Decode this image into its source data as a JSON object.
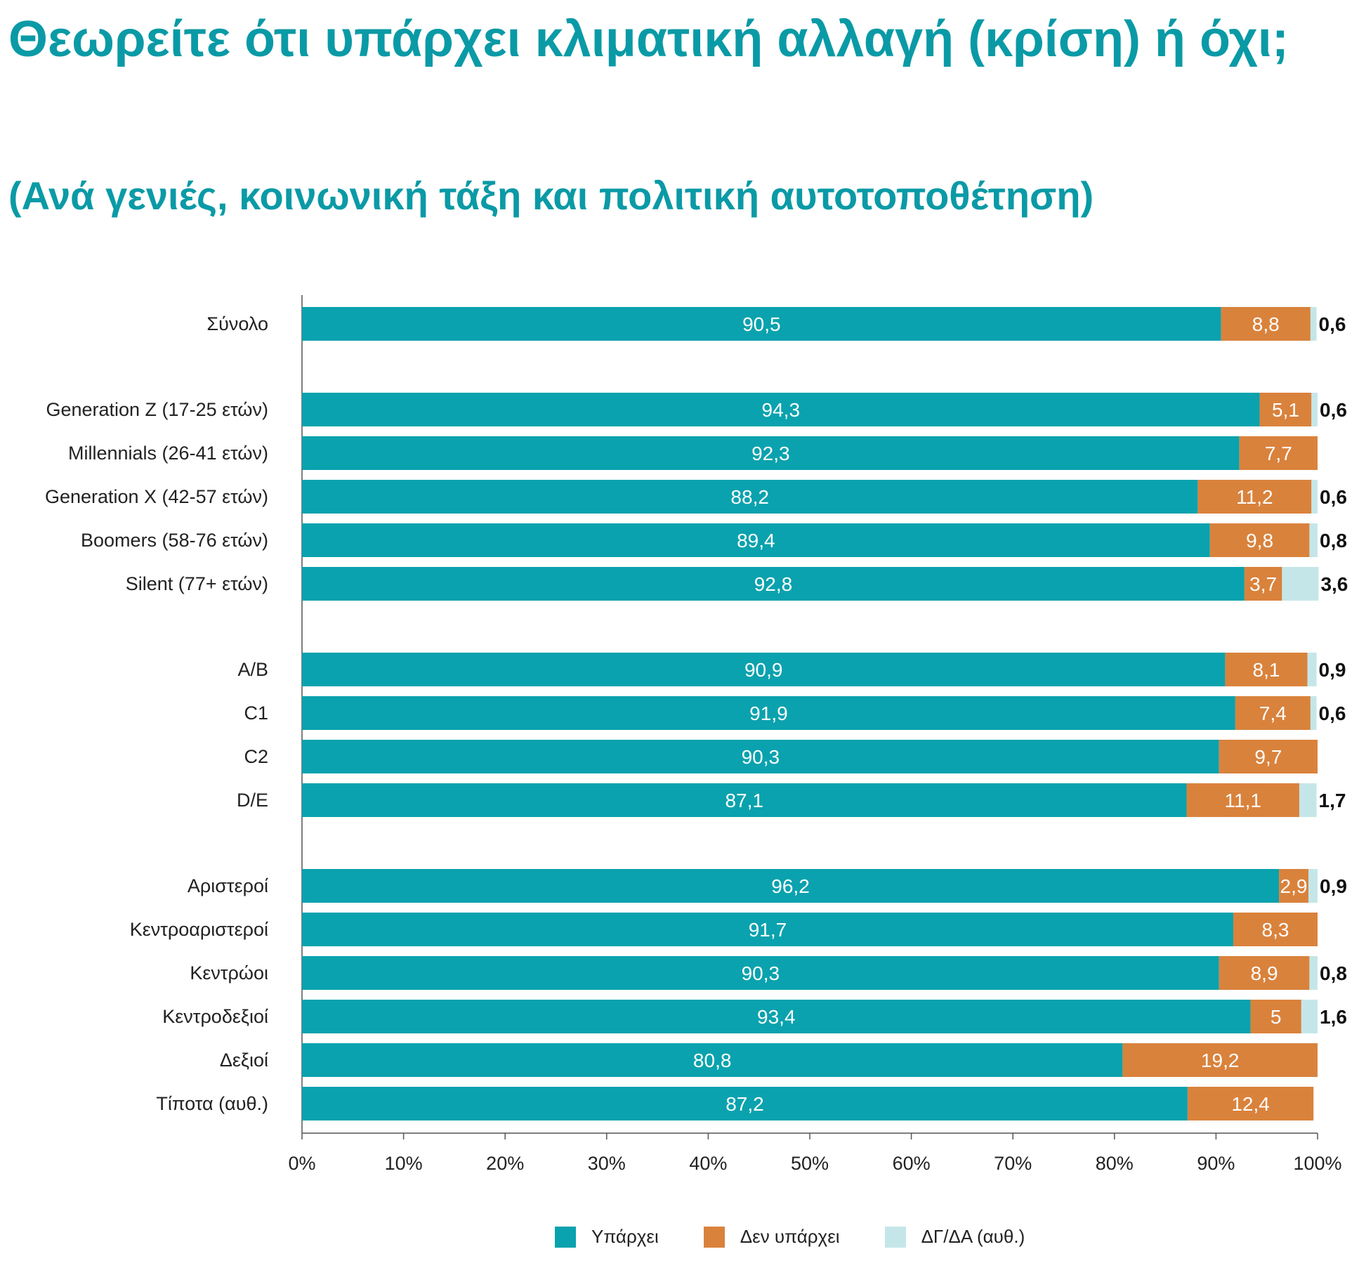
{
  "title": "Θεωρείτε ότι υπάρχει κλιματική αλλαγή (κρίση) ή όχι;",
  "subtitle": "(Ανά γενιές, κοινωνική τάξη και πολιτική αυτοτοποθέτηση)",
  "chart_data": {
    "type": "bar",
    "orientation": "horizontal",
    "stacked": true,
    "x_ticks": [
      "0%",
      "10%",
      "20%",
      "30%",
      "40%",
      "50%",
      "60%",
      "70%",
      "80%",
      "90%",
      "100%"
    ],
    "xlim": [
      0,
      100
    ],
    "legend_position": "bottom",
    "groups": [
      [
        "Σύνολο"
      ],
      [
        "Generation Z (17-25 ετών)",
        "Millennials (26-41 ετών)",
        "Generation X (42-57 ετών)",
        "Boomers (58-76 ετών)",
        "Silent (77+ ετών)"
      ],
      [
        "A/B",
        "C1",
        "C2",
        "D/E"
      ],
      [
        "Αριστεροί",
        "Κεντροαριστεροί",
        "Κεντρώοι",
        "Κεντροδεξιοί",
        "Δεξιοί",
        "Τίποτα (αυθ.)"
      ]
    ],
    "categories": [
      "Σύνολο",
      "Generation Z (17-25 ετών)",
      "Millennials (26-41 ετών)",
      "Generation X (42-57 ετών)",
      "Boomers (58-76 ετών)",
      "Silent (77+ ετών)",
      "A/B",
      "C1",
      "C2",
      "D/E",
      "Αριστεροί",
      "Κεντροαριστεροί",
      "Κεντρώοι",
      "Κεντροδεξιοί",
      "Δεξιοί",
      "Τίποτα (αυθ.)"
    ],
    "series": [
      {
        "name": "Υπάρχει",
        "color": "#0aa2ae",
        "values": [
          90.5,
          94.3,
          92.3,
          88.2,
          89.4,
          92.8,
          90.9,
          91.9,
          90.3,
          87.1,
          96.2,
          91.7,
          90.3,
          93.4,
          80.8,
          87.2
        ],
        "labels": [
          "90,5",
          "94,3",
          "92,3",
          "88,2",
          "89,4",
          "92,8",
          "90,9",
          "91,9",
          "90,3",
          "87,1",
          "96,2",
          "91,7",
          "90,3",
          "93,4",
          "80,8",
          "87,2"
        ]
      },
      {
        "name": "Δεν υπάρχει",
        "color": "#d9823c",
        "values": [
          8.8,
          5.1,
          7.7,
          11.2,
          9.8,
          3.7,
          8.1,
          7.4,
          9.7,
          11.1,
          2.9,
          8.3,
          8.9,
          5.0,
          19.2,
          12.4
        ],
        "labels": [
          "8,8",
          "5,1",
          "7,7",
          "11,2",
          "9,8",
          "3,7",
          "8,1",
          "7,4",
          "9,7",
          "11,1",
          "2,9",
          "8,3",
          "8,9",
          "5",
          "19,2",
          "12,4"
        ]
      },
      {
        "name": "ΔΓ/ΔΑ (αυθ.)",
        "color": "#c5e6e9",
        "values": [
          0.6,
          0.6,
          null,
          0.6,
          0.8,
          3.6,
          0.9,
          0.6,
          null,
          1.7,
          0.9,
          null,
          0.8,
          1.6,
          null,
          null
        ],
        "labels": [
          "0,6",
          "0,6",
          "",
          "0,6",
          "0,8",
          "3,6",
          "0,9",
          "0,6",
          "",
          "1,7",
          "0,9",
          "",
          "0,8",
          "1,6",
          "",
          ""
        ]
      }
    ]
  }
}
